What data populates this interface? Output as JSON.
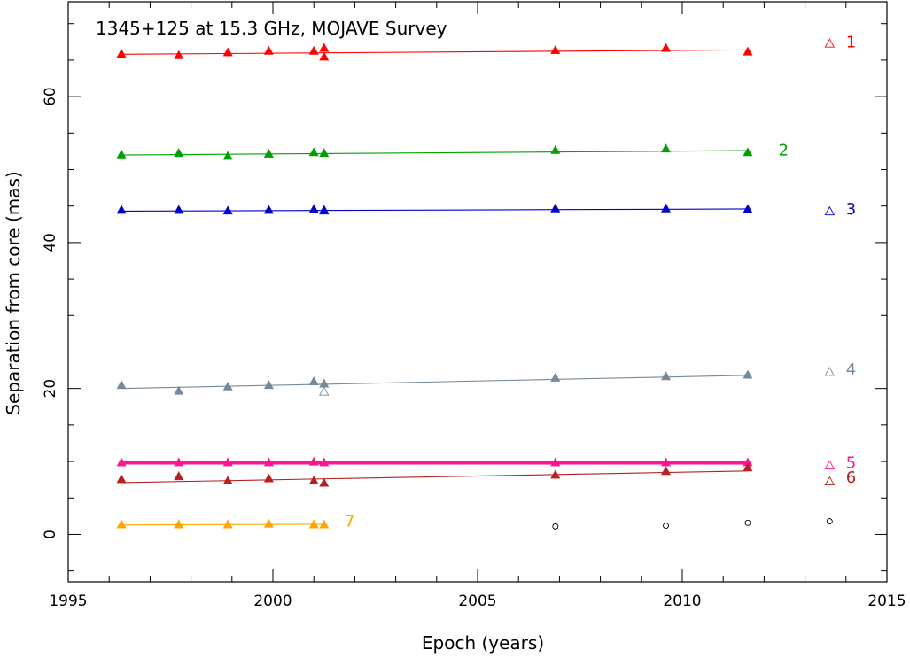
{
  "chart_data": {
    "type": "scatter",
    "title": "1345+125 at 15.3 GHz, MOJAVE Survey",
    "xlabel": "Epoch (years)",
    "ylabel": "Separation from core (mas)",
    "xlim": [
      1995,
      2015
    ],
    "ylim": [
      -6.5,
      73
    ],
    "xticks": [
      1995,
      2000,
      2005,
      2010,
      2015
    ],
    "yticks": [
      0,
      20,
      40,
      60
    ],
    "grid": false,
    "series": [
      {
        "name": "1",
        "color": "#ff0000",
        "points": [
          [
            1996.3,
            65.8
          ],
          [
            1997.7,
            65.6
          ],
          [
            1998.9,
            66.0
          ],
          [
            1999.9,
            66.2
          ],
          [
            2001.0,
            66.2
          ],
          [
            2001.25,
            66.6
          ],
          [
            2001.25,
            65.4
          ],
          [
            2006.9,
            66.3
          ],
          [
            2009.6,
            66.6
          ],
          [
            2011.6,
            66.1
          ]
        ],
        "fit": [
          [
            1996.3,
            65.8
          ],
          [
            2011.6,
            66.4
          ]
        ],
        "open": [
          [
            2013.6,
            67.2
          ]
        ],
        "label_x": 2014.0,
        "label_y": 67.5
      },
      {
        "name": "2",
        "color": "#00a000",
        "points": [
          [
            1996.3,
            52.0
          ],
          [
            1997.7,
            52.2
          ],
          [
            1998.9,
            51.8
          ],
          [
            1999.9,
            52.1
          ],
          [
            2001.0,
            52.3
          ],
          [
            2001.25,
            52.2
          ],
          [
            2006.9,
            52.6
          ],
          [
            2009.6,
            52.8
          ],
          [
            2011.6,
            52.3
          ]
        ],
        "fit": [
          [
            1996.3,
            52.0
          ],
          [
            2011.6,
            52.6
          ]
        ],
        "open": [],
        "label_x": 2012.35,
        "label_y": 52.7
      },
      {
        "name": "3",
        "color": "#0000cc",
        "points": [
          [
            1996.3,
            44.4
          ],
          [
            1997.7,
            44.4
          ],
          [
            1998.9,
            44.3
          ],
          [
            1999.9,
            44.4
          ],
          [
            2001.0,
            44.5
          ],
          [
            2001.25,
            44.4
          ],
          [
            2001.25,
            44.3
          ],
          [
            2006.9,
            44.6
          ],
          [
            2009.6,
            44.6
          ],
          [
            2011.6,
            44.5
          ]
        ],
        "fit": [
          [
            1996.3,
            44.3
          ],
          [
            2011.6,
            44.6
          ]
        ],
        "open": [
          [
            2013.6,
            44.2
          ]
        ],
        "label_x": 2014.0,
        "label_y": 44.6
      },
      {
        "name": "4",
        "color": "#778899",
        "points": [
          [
            1996.3,
            20.4
          ],
          [
            1997.7,
            19.6
          ],
          [
            1998.9,
            20.2
          ],
          [
            1999.9,
            20.4
          ],
          [
            2001.0,
            20.9
          ],
          [
            2001.25,
            20.6
          ],
          [
            2006.9,
            21.4
          ],
          [
            2009.6,
            21.6
          ],
          [
            2011.6,
            21.8
          ]
        ],
        "fit": [
          [
            1996.3,
            20.0
          ],
          [
            2011.6,
            21.8
          ]
        ],
        "open": [
          [
            2001.25,
            19.5
          ],
          [
            2013.6,
            22.2
          ]
        ],
        "label_x": 2014.0,
        "label_y": 22.6
      },
      {
        "name": "5",
        "color": "#ff1493",
        "points": [
          [
            1996.3,
            9.8
          ],
          [
            1997.7,
            9.8
          ],
          [
            1998.9,
            9.8
          ],
          [
            1999.9,
            9.8
          ],
          [
            2001.0,
            9.9
          ],
          [
            2001.25,
            9.8
          ],
          [
            2006.9,
            9.8
          ],
          [
            2009.6,
            9.8
          ],
          [
            2011.6,
            9.8
          ]
        ],
        "fit": [
          [
            1996.3,
            9.8
          ],
          [
            2011.6,
            9.8
          ]
        ],
        "open": [
          [
            2013.6,
            9.4
          ]
        ],
        "label_x": 2014.0,
        "label_y": 9.8
      },
      {
        "name": "6",
        "color": "#b22222",
        "points": [
          [
            1996.3,
            7.5
          ],
          [
            1997.7,
            7.9
          ],
          [
            1998.9,
            7.3
          ],
          [
            1999.9,
            7.6
          ],
          [
            2001.0,
            7.3
          ],
          [
            2001.25,
            7.0
          ],
          [
            2006.9,
            8.1
          ],
          [
            2009.6,
            8.6
          ],
          [
            2011.6,
            9.1
          ]
        ],
        "fit": [
          [
            1996.3,
            7.1
          ],
          [
            2011.6,
            8.7
          ]
        ],
        "open": [
          [
            2013.6,
            7.2
          ]
        ],
        "label_x": 2014.0,
        "label_y": 7.8
      },
      {
        "name": "7",
        "color": "#ffa500",
        "points": [
          [
            1996.3,
            1.3
          ],
          [
            1997.7,
            1.3
          ],
          [
            1998.9,
            1.3
          ],
          [
            1999.9,
            1.4
          ],
          [
            2001.0,
            1.3
          ],
          [
            2001.25,
            1.3
          ]
        ],
        "fit": [
          [
            1996.3,
            1.3
          ],
          [
            2001.25,
            1.4
          ]
        ],
        "open": [],
        "label_x": 2001.75,
        "label_y": 1.8
      },
      {
        "name": "",
        "color": "#000000",
        "marker": "circle",
        "points": [
          [
            2006.9,
            1.1
          ],
          [
            2009.6,
            1.2
          ],
          [
            2011.6,
            1.6
          ],
          [
            2013.6,
            1.8
          ]
        ],
        "fit": [],
        "open": []
      }
    ]
  }
}
